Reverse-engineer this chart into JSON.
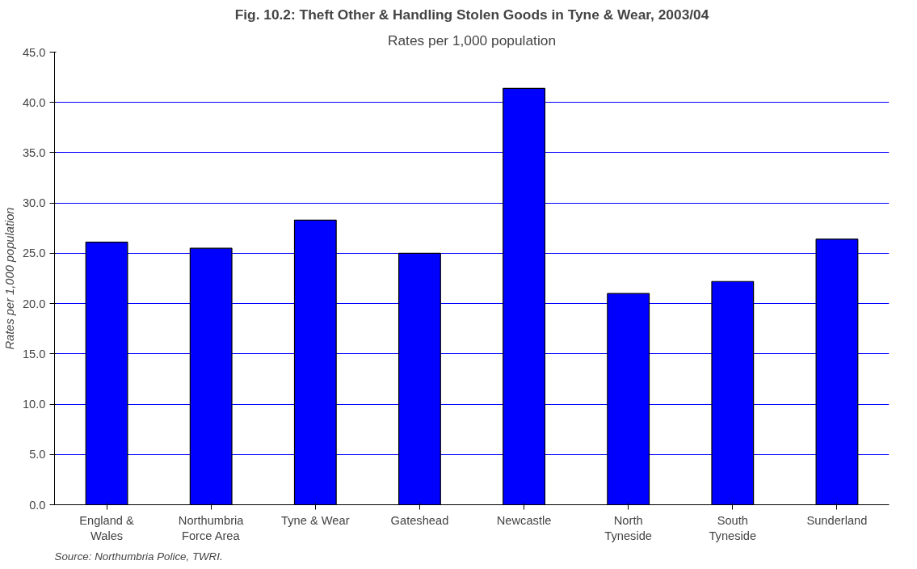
{
  "chart_data": {
    "type": "bar",
    "title": "Fig. 10.2: Theft Other & Handling Stolen Goods in Tyne & Wear, 2003/04",
    "subtitle": "Rates per 1,000 population",
    "ylabel": "Rates per 1,000 population",
    "categories": [
      "England & Wales",
      "Northumbria Force Area",
      "Tyne & Wear",
      "Gateshead",
      "Newcastle",
      "North Tyneside",
      "South Tyneside",
      "Sunderland"
    ],
    "values": [
      26.1,
      25.5,
      28.3,
      25.0,
      41.4,
      21.0,
      22.2,
      26.4
    ],
    "color": "#0000ff",
    "ylim": [
      0,
      45
    ],
    "yticks": [
      {
        "value": 0,
        "label": "0.0"
      },
      {
        "value": 5,
        "label": "5.0"
      },
      {
        "value": 10,
        "label": "10.0"
      },
      {
        "value": 15,
        "label": "15.0"
      },
      {
        "value": 20,
        "label": "20.0"
      },
      {
        "value": 25,
        "label": "25.0"
      },
      {
        "value": 30,
        "label": "30.0"
      },
      {
        "value": 35,
        "label": "35.0"
      },
      {
        "value": 40,
        "label": "40.0"
      },
      {
        "value": 45,
        "label": "45.0"
      }
    ],
    "grid": "y",
    "annotations": [
      "Source: Northumbria Police, TWRI."
    ]
  }
}
